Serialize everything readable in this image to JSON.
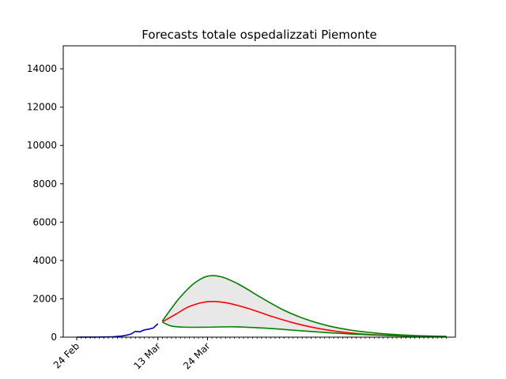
{
  "chart_data": {
    "type": "line",
    "title": "Forecasts totale ospedalizzati Piemonte",
    "xlabel": "",
    "ylabel": "",
    "ylim": [
      0,
      15200
    ],
    "y_ticks": [
      0,
      2000,
      4000,
      6000,
      8000,
      10000,
      12000,
      14000
    ],
    "x_axis_start": "2020-02-21",
    "x_axis_end": "2020-05-18",
    "x_tick_labels": [
      {
        "date": "2020-02-24",
        "label": "24 Feb"
      },
      {
        "date": "2020-03-13",
        "label": "13 Mar"
      },
      {
        "date": "2020-03-24",
        "label": "24 Mar"
      }
    ],
    "minor_ticks_range": [
      "2020-02-24",
      "2020-05-16"
    ],
    "grid": false,
    "series": [
      {
        "role": "observed",
        "color": "#0000cc",
        "points": [
          [
            "2020-02-24",
            0
          ],
          [
            "2020-02-25",
            2
          ],
          [
            "2020-02-26",
            3
          ],
          [
            "2020-02-27",
            3
          ],
          [
            "2020-02-28",
            4
          ],
          [
            "2020-02-29",
            5
          ],
          [
            "2020-03-01",
            8
          ],
          [
            "2020-03-02",
            12
          ],
          [
            "2020-03-03",
            20
          ],
          [
            "2020-03-04",
            40
          ],
          [
            "2020-03-05",
            60
          ],
          [
            "2020-03-06",
            100
          ],
          [
            "2020-03-07",
            160
          ],
          [
            "2020-03-08",
            300
          ],
          [
            "2020-03-09",
            280
          ],
          [
            "2020-03-10",
            380
          ],
          [
            "2020-03-11",
            420
          ],
          [
            "2020-03-12",
            480
          ],
          [
            "2020-03-13",
            700
          ]
        ]
      },
      {
        "role": "forecast_mid",
        "color": "#ff0000",
        "points": [
          [
            "2020-03-14",
            800
          ],
          [
            "2020-03-17",
            1200
          ],
          [
            "2020-03-20",
            1600
          ],
          [
            "2020-03-24",
            1850
          ],
          [
            "2020-03-28",
            1800
          ],
          [
            "2020-04-02",
            1500
          ],
          [
            "2020-04-07",
            1100
          ],
          [
            "2020-04-12",
            750
          ],
          [
            "2020-04-17",
            480
          ],
          [
            "2020-04-22",
            290
          ],
          [
            "2020-04-27",
            170
          ],
          [
            "2020-05-02",
            100
          ],
          [
            "2020-05-07",
            60
          ],
          [
            "2020-05-12",
            35
          ],
          [
            "2020-05-16",
            25
          ]
        ]
      },
      {
        "role": "forecast_upper",
        "color": "#008000",
        "points": [
          [
            "2020-03-14",
            850
          ],
          [
            "2020-03-16",
            1500
          ],
          [
            "2020-03-18",
            2100
          ],
          [
            "2020-03-21",
            2800
          ],
          [
            "2020-03-24",
            3180
          ],
          [
            "2020-03-27",
            3150
          ],
          [
            "2020-03-31",
            2750
          ],
          [
            "2020-04-05",
            2050
          ],
          [
            "2020-04-10",
            1400
          ],
          [
            "2020-04-15",
            920
          ],
          [
            "2020-04-20",
            580
          ],
          [
            "2020-04-25",
            360
          ],
          [
            "2020-04-30",
            220
          ],
          [
            "2020-05-05",
            130
          ],
          [
            "2020-05-10",
            75
          ],
          [
            "2020-05-16",
            40
          ]
        ]
      },
      {
        "role": "forecast_lower",
        "color": "#008000",
        "points": [
          [
            "2020-03-14",
            780
          ],
          [
            "2020-03-16",
            580
          ],
          [
            "2020-03-19",
            520
          ],
          [
            "2020-03-24",
            520
          ],
          [
            "2020-03-30",
            540
          ],
          [
            "2020-04-05",
            480
          ],
          [
            "2020-04-10",
            400
          ],
          [
            "2020-04-15",
            310
          ],
          [
            "2020-04-20",
            230
          ],
          [
            "2020-04-25",
            160
          ],
          [
            "2020-04-30",
            110
          ],
          [
            "2020-05-05",
            70
          ],
          [
            "2020-05-10",
            45
          ],
          [
            "2020-05-16",
            30
          ]
        ]
      }
    ],
    "band": {
      "between": [
        "forecast_upper",
        "forecast_lower"
      ],
      "fill": "#e8e8e8",
      "edge": "#888888"
    }
  }
}
